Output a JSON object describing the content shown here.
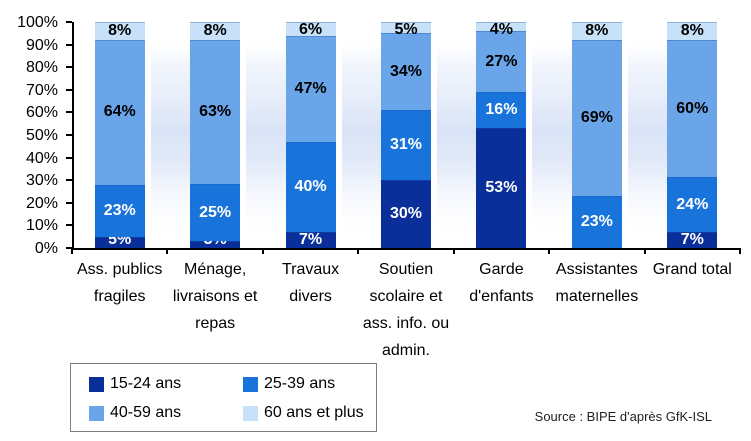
{
  "chart_data": {
    "type": "bar",
    "stacked": true,
    "percent_stacked": true,
    "title": "",
    "xlabel": "",
    "ylabel": "",
    "grid": false,
    "legend_position": "bottom-left",
    "categories": [
      "Ass. publics\nfragiles",
      "Ménage,\nlivraisons et\nrepas",
      "Travaux\ndivers",
      "Soutien\nscolaire et\nass. info. ou\nadmin.",
      "Garde\nd'enfants",
      "Assistantes\nmaternelles",
      "Grand total"
    ],
    "series": [
      {
        "name": "15-24 ans",
        "color": "#0A2F9B",
        "label_color": "#FFFFFF",
        "values": [
          5,
          3,
          7,
          30,
          53,
          0,
          7
        ]
      },
      {
        "name": "25-39 ans",
        "color": "#1874DA",
        "label_color": "#FFFFFF",
        "values": [
          23,
          25,
          40,
          31,
          16,
          23,
          24
        ]
      },
      {
        "name": "40-59 ans",
        "color": "#6BA5E9",
        "label_color": "#000000",
        "values": [
          64,
          63,
          47,
          34,
          27,
          69,
          60
        ]
      },
      {
        "name": "60 ans et plus",
        "color": "#C7E2F8",
        "label_color": "#000000",
        "values": [
          8,
          8,
          6,
          5,
          4,
          8,
          8
        ]
      }
    ],
    "value_label_suffix": "%",
    "y_axis": {
      "min": 0,
      "max": 100,
      "step": 10,
      "tick_labels": [
        "0%",
        "10%",
        "20%",
        "30%",
        "40%",
        "50%",
        "60%",
        "70%",
        "80%",
        "90%",
        "100%"
      ]
    }
  },
  "source": {
    "text": "Source : BIPE d'après GfK-ISL"
  }
}
